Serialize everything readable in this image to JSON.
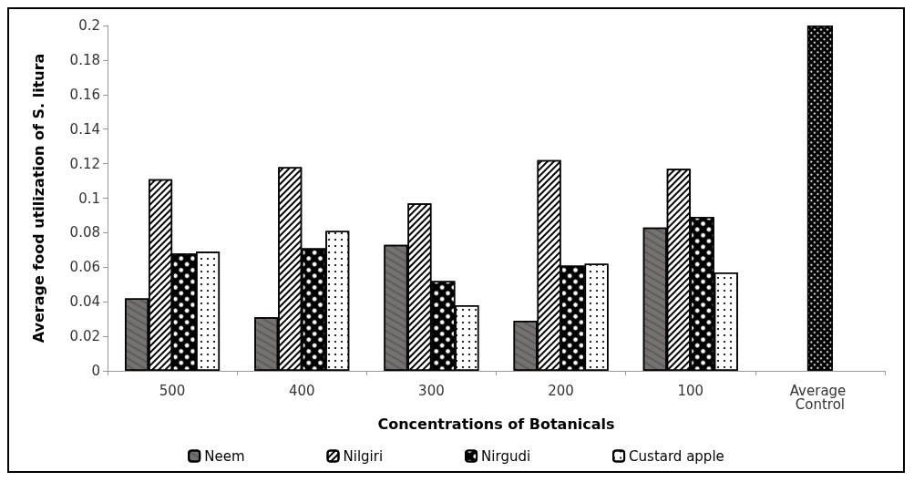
{
  "chart_data": {
    "type": "bar",
    "xlabel": "Concentrations of Botanicals",
    "ylabel": "Average food utilization of S. litura",
    "categories": [
      "500",
      "400",
      "300",
      "200",
      "100",
      "Average Control"
    ],
    "series": [
      {
        "name": "Neem",
        "color": "#767171",
        "values": [
          0.042,
          0.031,
          0.073,
          0.029,
          0.083,
          null
        ]
      },
      {
        "name": "Nilgiri",
        "color": "#ffffff",
        "values": [
          0.111,
          0.118,
          0.097,
          0.122,
          0.117,
          null
        ]
      },
      {
        "name": "Nirgudi",
        "color": "#000000",
        "values": [
          0.068,
          0.071,
          0.052,
          0.061,
          0.089,
          null
        ]
      },
      {
        "name": "Custard apple",
        "color": "#ffffff",
        "values": [
          0.069,
          0.081,
          0.038,
          0.062,
          0.057,
          null
        ]
      },
      {
        "color": "#000000",
        "values": [
          null,
          null,
          null,
          null,
          null,
          0.2
        ]
      }
    ],
    "ylim": [
      0,
      0.2
    ],
    "yticks": [
      0,
      0.02,
      0.04,
      0.06,
      0.08,
      0.1,
      0.12,
      0.14,
      0.16,
      0.18,
      0.2
    ],
    "grid": false,
    "legend": "bottom"
  }
}
